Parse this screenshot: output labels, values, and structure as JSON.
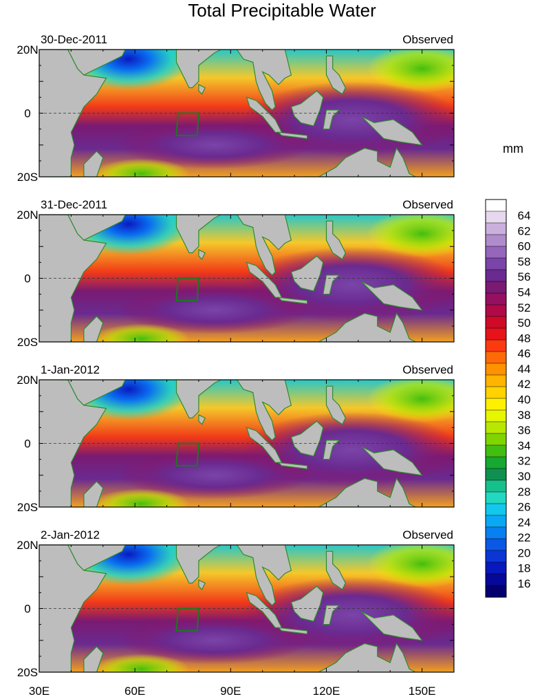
{
  "title": "Total Precipitable Water",
  "unit_label": "mm",
  "panels": [
    {
      "date": "30-Dec-2011",
      "label": "Observed"
    },
    {
      "date": "31-Dec-2011",
      "label": "Observed"
    },
    {
      "date": "1-Jan-2012",
      "label": "Observed"
    },
    {
      "date": "2-Jan-2012",
      "label": "Observed"
    }
  ],
  "lat_labels": [
    "20N",
    "0",
    "20S"
  ],
  "lon_labels": [
    "30E",
    "60E",
    "90E",
    "120E",
    "150E"
  ],
  "colorbar": {
    "labels": [
      "64",
      "62",
      "60",
      "58",
      "56",
      "54",
      "52",
      "50",
      "48",
      "46",
      "44",
      "42",
      "40",
      "38",
      "36",
      "34",
      "32",
      "30",
      "28",
      "26",
      "24",
      "22",
      "20",
      "18",
      "16"
    ],
    "colors": [
      "#ffffff",
      "#e6d8ee",
      "#cbb0dd",
      "#b08ccc",
      "#9566bb",
      "#7a44a8",
      "#6a2a90",
      "#7a1a72",
      "#951060",
      "#b00a48",
      "#cf0a28",
      "#e8121a",
      "#fb3a10",
      "#ff6a08",
      "#ff9200",
      "#ffb400",
      "#ffd200",
      "#fff000",
      "#e6f500",
      "#b8e800",
      "#80d400",
      "#42be10",
      "#16a830",
      "#109050",
      "#16c08a",
      "#22d8c0",
      "#12c8ec",
      "#0aa8f4",
      "#0880f0",
      "#0a58e6",
      "#0a36d6",
      "#0818bc",
      "#06089a",
      "#050070"
    ]
  },
  "region_box": "green square near 74–80E, 0–7S"
}
